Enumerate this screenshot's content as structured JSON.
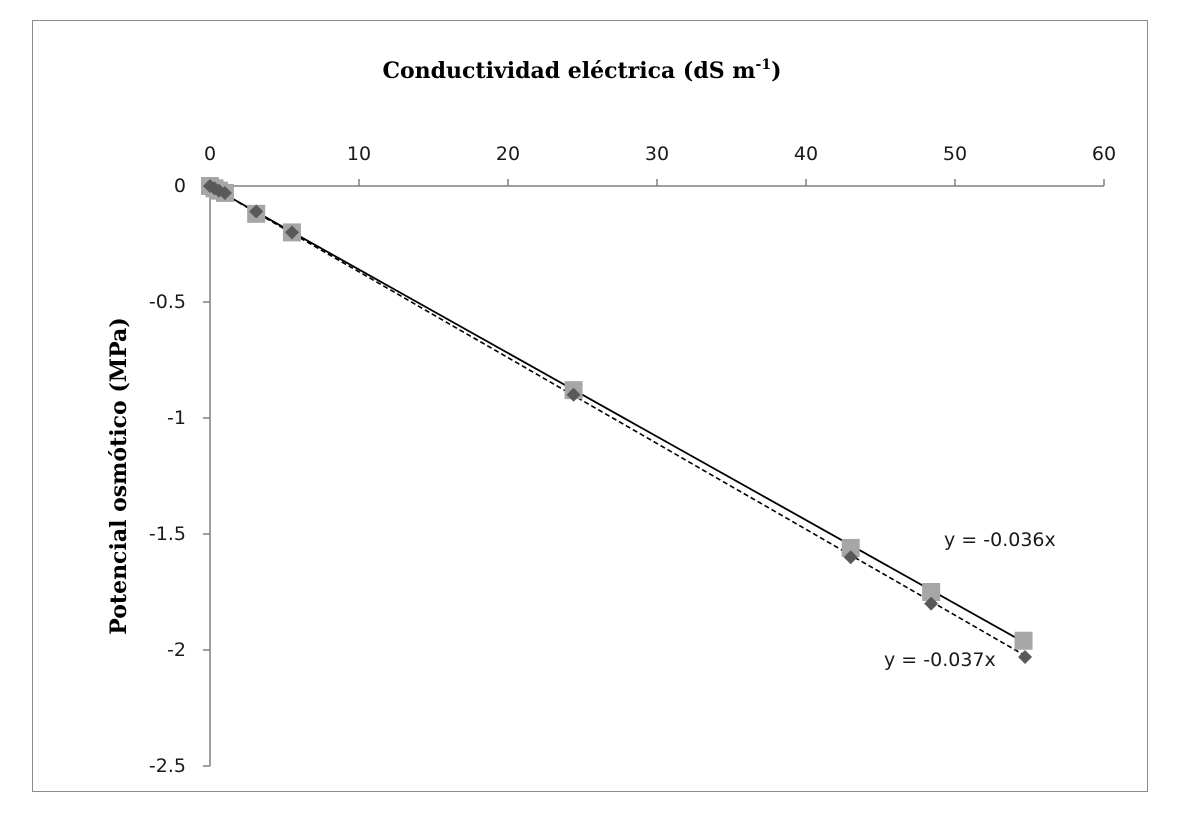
{
  "chart_data": {
    "type": "scatter",
    "xlabel": "Conductividad eléctrica (dS m",
    "xlabel_superscript": "-1",
    "xlabel_close": ")",
    "ylabel": "Potencial  osmótico (MPa)",
    "xlim": [
      0,
      60
    ],
    "ylim": [
      -2.5,
      0
    ],
    "x_axis_position": "top",
    "x_ticks": [
      0,
      10,
      20,
      30,
      40,
      50,
      60
    ],
    "x_tick_labels": [
      "0",
      "10",
      "20",
      "30",
      "40",
      "50",
      "60"
    ],
    "y_ticks": [
      0,
      -0.5,
      -1,
      -1.5,
      -2,
      -2.5
    ],
    "y_tick_labels": [
      "0",
      "-0.5",
      "-1",
      "-1.5",
      "-2",
      "-2.5"
    ],
    "grid": false,
    "legend": "none",
    "series": [
      {
        "marker": "diamond",
        "color": "#595959",
        "x": [
          0,
          0.3,
          0.6,
          1.0,
          3.1,
          5.5,
          24.4,
          43.0,
          48.4,
          54.7
        ],
        "y": [
          0,
          -0.01,
          -0.02,
          -0.03,
          -0.11,
          -0.2,
          -0.9,
          -1.6,
          -1.8,
          -2.03
        ],
        "trendline": {
          "slope": -0.037,
          "style": "dashed",
          "color": "#000000",
          "equation": "y = -0.037x"
        }
      },
      {
        "marker": "square",
        "color": "#a6a6a6",
        "x": [
          0,
          0.3,
          0.6,
          1.0,
          3.1,
          5.5,
          24.4,
          43.0,
          48.4,
          54.6
        ],
        "y": [
          0,
          -0.01,
          -0.02,
          -0.03,
          -0.12,
          -0.2,
          -0.88,
          -1.56,
          -1.75,
          -1.96
        ],
        "trendline": {
          "slope": -0.036,
          "style": "solid",
          "color": "#000000",
          "equation": "y = -0.036x"
        }
      }
    ]
  }
}
